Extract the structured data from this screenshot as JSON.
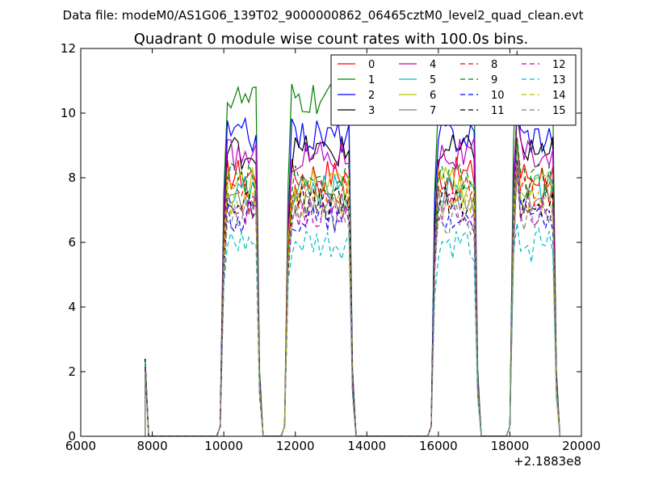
{
  "chart_data": {
    "type": "line",
    "suptitle": "Data file: modeM0/AS1G06_139T02_9000000862_06465cztM0_level2_quad_clean.evt",
    "title": "Quadrant 0 module wise count rates with 100.0s bins.",
    "xlabel": "",
    "ylabel": "",
    "xlim": [
      6000,
      20000
    ],
    "ylim": [
      0,
      12
    ],
    "x_offset_label": "+2.1883e8",
    "xticks": [
      6000,
      8000,
      10000,
      12000,
      14000,
      16000,
      18000,
      20000
    ],
    "xtick_labels": [
      "6000",
      "8000",
      "10000",
      "12000",
      "14000",
      "16000",
      "18000",
      "20000"
    ],
    "yticks": [
      0,
      2,
      4,
      6,
      8,
      10,
      12
    ],
    "ytick_labels": [
      "0",
      "2",
      "4",
      "6",
      "8",
      "10",
      "12"
    ],
    "grid": false,
    "legend_position": "top-right",
    "legend_columns": 4,
    "bin_width": 100,
    "segments": [
      {
        "start": 7800,
        "end": 7900
      },
      {
        "start": 9900,
        "end": 11100
      },
      {
        "start": 11700,
        "end": 13700
      },
      {
        "start": 15800,
        "end": 17200
      },
      {
        "start": 18000,
        "end": 19400
      }
    ],
    "series": [
      {
        "name": "0",
        "color": "#ff0000",
        "dash": "solid",
        "level": 8.1,
        "peak": 2.4
      },
      {
        "name": "1",
        "color": "#008000",
        "dash": "solid",
        "level": 10.4,
        "peak": 2.4
      },
      {
        "name": "2",
        "color": "#0000ff",
        "dash": "solid",
        "level": 9.3,
        "peak": 2.4
      },
      {
        "name": "3",
        "color": "#000000",
        "dash": "solid",
        "level": 8.8,
        "peak": 2.4
      },
      {
        "name": "4",
        "color": "#bf00bf",
        "dash": "solid",
        "level": 8.7,
        "peak": 2.3
      },
      {
        "name": "5",
        "color": "#00bfbf",
        "dash": "solid",
        "level": 7.6,
        "peak": 2.3
      },
      {
        "name": "6",
        "color": "#bfbf00",
        "dash": "solid",
        "level": 7.8,
        "peak": 2.2
      },
      {
        "name": "7",
        "color": "#808080",
        "dash": "solid",
        "level": 7.4,
        "peak": 2.2
      },
      {
        "name": "8",
        "color": "#ff0000",
        "dash": "dashed",
        "level": 7.5,
        "peak": 2.2
      },
      {
        "name": "9",
        "color": "#008000",
        "dash": "dashed",
        "level": 7.9,
        "peak": 2.2
      },
      {
        "name": "10",
        "color": "#0000ff",
        "dash": "dashed",
        "level": 6.8,
        "peak": 2.1
      },
      {
        "name": "11",
        "color": "#000000",
        "dash": "dashed",
        "level": 7.2,
        "peak": 2.1
      },
      {
        "name": "12",
        "color": "#bf00bf",
        "dash": "dashed",
        "level": 7.0,
        "peak": 2.1
      },
      {
        "name": "13",
        "color": "#00bfbf",
        "dash": "dashed",
        "level": 5.9,
        "peak": 2.0
      },
      {
        "name": "14",
        "color": "#bfbf00",
        "dash": "dashed",
        "level": 7.3,
        "peak": 2.0
      },
      {
        "name": "15",
        "color": "#808080",
        "dash": "dashed",
        "level": 6.7,
        "peak": 2.0
      }
    ]
  }
}
